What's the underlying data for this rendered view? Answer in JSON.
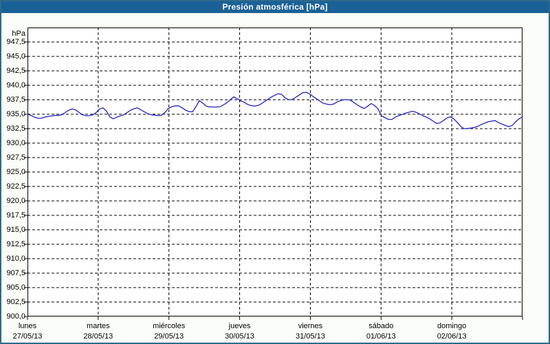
{
  "window": {
    "title": "Presión atmosférica [hPa]"
  },
  "colors": {
    "frame_border": "#2E6A8C",
    "titlebar_bg": "#1A6197",
    "titlebar_text": "#FFFFFF",
    "page_bg": "#FBFDF8",
    "plot_bg": "#FFFFFF",
    "grid_line": "#000000",
    "axis_line": "#000000",
    "series_line": "#2222C0",
    "label_text": "#000000"
  },
  "y_axis": {
    "unit_label": "hPa",
    "min": 900.0,
    "max": 950.0,
    "tick_step": 2.5,
    "tick_labels": [
      "947,5",
      "945,0",
      "942,5",
      "940,0",
      "937,5",
      "935,0",
      "932,5",
      "930,0",
      "927,5",
      "925,0",
      "922,5",
      "920,0",
      "917,5",
      "915,0",
      "912,5",
      "910,0",
      "907,5",
      "905,0",
      "902,5",
      "900,0"
    ]
  },
  "x_axis": {
    "days": [
      {
        "name": "lunes",
        "date": "27/05/13"
      },
      {
        "name": "martes",
        "date": "28/05/13"
      },
      {
        "name": "miércoles",
        "date": "29/05/13"
      },
      {
        "name": "jueves",
        "date": "30/05/13"
      },
      {
        "name": "viernes",
        "date": "31/05/13"
      },
      {
        "name": "sábado",
        "date": "01/06/13"
      },
      {
        "name": "domingo",
        "date": "02/06/13"
      }
    ]
  },
  "chart_data": {
    "type": "line",
    "title": "Presión atmosférica [hPa]",
    "ylabel": "hPa",
    "ylim": [
      900.0,
      950.0
    ],
    "y_tick_step": 2.5,
    "grid": "dashed, every 2.5 hPa horizontally and every day vertically",
    "legend_position": "none",
    "x_span_days": 7,
    "categories": [
      "lunes 27/05/13",
      "martes 28/05/13",
      "miércoles 29/05/13",
      "jueves 30/05/13",
      "viernes 31/05/13",
      "sábado 01/06/13",
      "domingo 02/06/13"
    ],
    "series": [
      {
        "name": "Presión atmosférica",
        "unit": "hPa",
        "sampling": "uniform over 7 days, 145 points",
        "values": [
          935.0,
          934.8,
          934.5,
          934.3,
          934.3,
          934.5,
          934.6,
          934.7,
          934.8,
          934.8,
          934.9,
          935.3,
          935.7,
          935.9,
          935.75,
          935.3,
          934.9,
          934.75,
          934.75,
          934.9,
          935.3,
          935.9,
          936.1,
          935.5,
          934.5,
          934.2,
          934.5,
          934.7,
          934.9,
          935.3,
          935.7,
          935.95,
          936.1,
          935.75,
          935.4,
          935.1,
          934.9,
          934.85,
          934.75,
          934.85,
          935.3,
          936.0,
          936.3,
          936.45,
          936.45,
          936.1,
          935.7,
          935.45,
          935.4,
          936.3,
          937.35,
          936.9,
          936.4,
          936.25,
          936.25,
          936.25,
          936.3,
          936.6,
          937.0,
          937.5,
          938.0,
          937.7,
          937.3,
          937.1,
          936.7,
          936.5,
          936.4,
          936.5,
          936.8,
          937.2,
          937.6,
          938.0,
          938.3,
          938.55,
          938.4,
          937.8,
          937.5,
          937.55,
          937.9,
          938.3,
          938.7,
          938.8,
          938.55,
          938.1,
          937.7,
          937.3,
          936.9,
          936.75,
          936.65,
          936.75,
          937.1,
          937.35,
          937.5,
          937.55,
          937.4,
          937.0,
          936.6,
          936.25,
          936.0,
          936.4,
          936.85,
          936.5,
          935.9,
          934.7,
          934.4,
          934.1,
          934.1,
          934.5,
          934.75,
          934.95,
          935.2,
          935.35,
          935.5,
          935.35,
          935.05,
          934.75,
          934.5,
          934.2,
          933.8,
          933.4,
          933.5,
          933.9,
          934.35,
          934.55,
          934.2,
          933.6,
          932.9,
          932.5,
          932.55,
          932.6,
          932.7,
          932.9,
          933.2,
          933.45,
          933.7,
          933.8,
          933.9,
          933.55,
          933.3,
          933.05,
          932.85,
          933.05,
          933.7,
          934.2,
          934.55
        ]
      }
    ]
  }
}
